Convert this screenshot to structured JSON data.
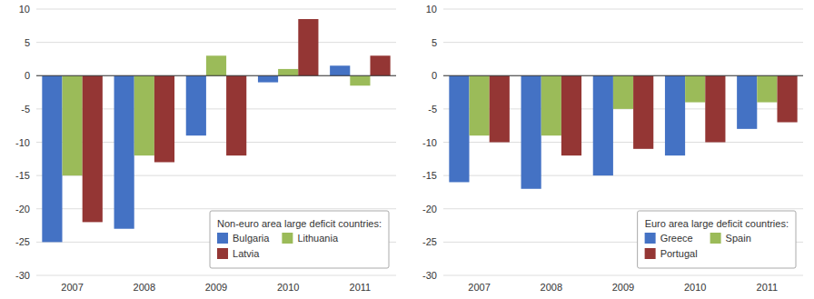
{
  "chart_data": [
    {
      "type": "bar",
      "title": "Non-euro area large deficit countries:",
      "categories": [
        "2007",
        "2008",
        "2009",
        "2010",
        "2011"
      ],
      "series": [
        {
          "name": "Bulgaria",
          "color": "#4472C4",
          "values": [
            -25,
            -23,
            -9,
            -1,
            1.5
          ]
        },
        {
          "name": "Lithuania",
          "color": "#9BBB59",
          "values": [
            -15,
            -12,
            3,
            1,
            -1.5
          ]
        },
        {
          "name": "Latvia",
          "color": "#943634",
          "values": [
            -22,
            -13,
            -12,
            8.5,
            3
          ]
        }
      ],
      "ylim": [
        -30,
        10
      ],
      "yticks": [
        -30,
        -25,
        -20,
        -15,
        -10,
        -5,
        0,
        5,
        10
      ],
      "grid": true,
      "legend": "lower right"
    },
    {
      "type": "bar",
      "title": "Euro area large deficit countries:",
      "categories": [
        "2007",
        "2008",
        "2009",
        "2010",
        "2011"
      ],
      "series": [
        {
          "name": "Greece",
          "color": "#4472C4",
          "values": [
            -16,
            -17,
            -15,
            -12,
            -8
          ]
        },
        {
          "name": "Spain",
          "color": "#9BBB59",
          "values": [
            -9,
            -9,
            -5,
            -4,
            -4
          ]
        },
        {
          "name": "Portugal",
          "color": "#943634",
          "values": [
            -10,
            -12,
            -11,
            -10,
            -7
          ]
        }
      ],
      "ylim": [
        -30,
        10
      ],
      "yticks": [
        -30,
        -25,
        -20,
        -15,
        -10,
        -5,
        0,
        5,
        10
      ],
      "grid": true,
      "legend": "lower right"
    }
  ]
}
